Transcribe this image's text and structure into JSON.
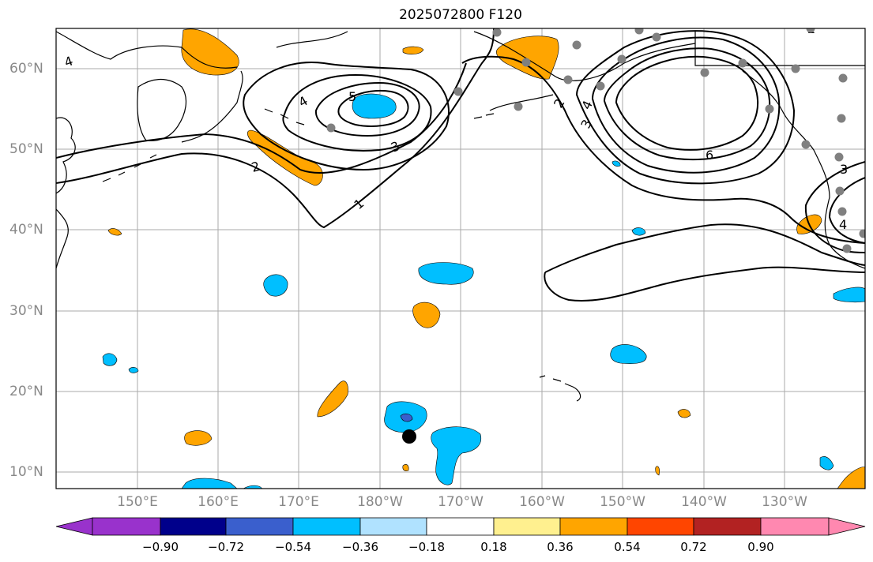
{
  "title": "2025072800 F120",
  "lat_labels": [
    "60°N",
    "50°N",
    "40°N",
    "30°N",
    "20°N",
    "10°N"
  ],
  "lon_labels": [
    "150°E",
    "160°E",
    "170°E",
    "180°W",
    "170°W",
    "160°W",
    "150°W",
    "140°W",
    "130°W"
  ],
  "contour_labels": [
    "1",
    "2",
    "3",
    "4",
    "5",
    "6",
    "2",
    "3",
    "4",
    "3",
    "4",
    "4",
    "2"
  ],
  "colorbar": {
    "ticks": [
      "−0.90",
      "−0.72",
      "−0.54",
      "−0.36",
      "−0.18",
      "0.18",
      "0.36",
      "0.54",
      "0.72",
      "0.90"
    ],
    "colors": [
      "#9932cc",
      "#00008b",
      "#3a5fcd",
      "#00bfff",
      "#b0e2ff",
      "#ffffff",
      "#fff08f",
      "#ffa500",
      "#ff4500",
      "#b22222",
      "#ff88b0"
    ]
  },
  "legend_colors": {
    "negative": "#00bfff",
    "negative_strong": "#3a5fcd",
    "positive": "#ffa500",
    "station_marker": "#808080",
    "center_marker": "#000000"
  }
}
